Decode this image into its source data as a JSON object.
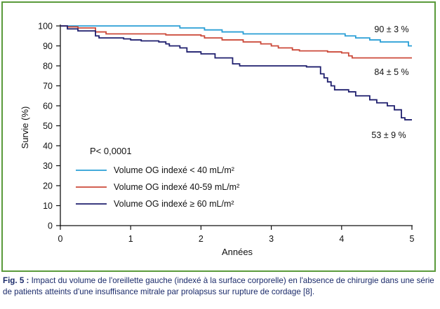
{
  "chart_data": {
    "type": "line",
    "title": "",
    "xlabel": "Années",
    "ylabel": "Survie (%)",
    "xlim": [
      0,
      5
    ],
    "ylim": [
      0,
      100
    ],
    "x_ticks": [
      "0",
      "1",
      "2",
      "3",
      "4",
      "5"
    ],
    "y_ticks": [
      "0",
      "10",
      "20",
      "30",
      "40",
      "50",
      "60",
      "70",
      "80",
      "90",
      "100"
    ],
    "grid": false,
    "legend_position": "center-left",
    "p_value": "P< 0,0001",
    "series": [
      {
        "name": "Volume OG indexé < 40 mL/m²",
        "color": "#2a9fd6",
        "end_label": "90 ± 3 %",
        "points": [
          [
            0,
            100
          ],
          [
            0.25,
            100
          ],
          [
            1.2,
            100
          ],
          [
            1.7,
            99
          ],
          [
            2.05,
            98
          ],
          [
            2.3,
            97
          ],
          [
            2.6,
            96
          ],
          [
            3.3,
            96
          ],
          [
            3.9,
            96
          ],
          [
            4.05,
            95
          ],
          [
            4.2,
            94
          ],
          [
            4.4,
            93
          ],
          [
            4.55,
            92
          ],
          [
            4.9,
            92
          ],
          [
            4.95,
            90
          ],
          [
            5,
            90
          ]
        ]
      },
      {
        "name": "Volume OG indexé 40-59 mL/m²",
        "color": "#cc4a3a",
        "end_label": "84 ± 5 %",
        "points": [
          [
            0,
            100
          ],
          [
            0.1,
            99.5
          ],
          [
            0.25,
            99
          ],
          [
            0.5,
            97
          ],
          [
            0.65,
            96
          ],
          [
            1.3,
            96
          ],
          [
            1.5,
            95.5
          ],
          [
            2.0,
            95
          ],
          [
            2.05,
            94
          ],
          [
            2.3,
            93
          ],
          [
            2.6,
            92
          ],
          [
            2.85,
            91
          ],
          [
            3.0,
            90
          ],
          [
            3.1,
            89
          ],
          [
            3.3,
            88
          ],
          [
            3.4,
            87.5
          ],
          [
            3.8,
            87
          ],
          [
            4.0,
            86.5
          ],
          [
            4.1,
            85
          ],
          [
            4.15,
            84
          ],
          [
            5,
            84
          ]
        ]
      },
      {
        "name": "Volume OG indexé ≥ 60 mL/m²",
        "color": "#1f1f6e",
        "end_label": "53 ± 9 %",
        "points": [
          [
            0,
            100
          ],
          [
            0.1,
            98.5
          ],
          [
            0.25,
            97.5
          ],
          [
            0.5,
            95
          ],
          [
            0.55,
            94
          ],
          [
            0.9,
            93.5
          ],
          [
            1.0,
            93
          ],
          [
            1.15,
            92.5
          ],
          [
            1.4,
            92
          ],
          [
            1.5,
            91
          ],
          [
            1.55,
            90
          ],
          [
            1.7,
            89
          ],
          [
            1.8,
            87
          ],
          [
            2.0,
            86
          ],
          [
            2.2,
            84
          ],
          [
            2.45,
            81
          ],
          [
            2.55,
            80
          ],
          [
            3.05,
            80
          ],
          [
            3.5,
            79.5
          ],
          [
            3.7,
            76
          ],
          [
            3.75,
            74
          ],
          [
            3.8,
            72
          ],
          [
            3.85,
            70
          ],
          [
            3.9,
            68
          ],
          [
            4.1,
            67
          ],
          [
            4.2,
            65
          ],
          [
            4.4,
            63
          ],
          [
            4.5,
            61.5
          ],
          [
            4.65,
            60
          ],
          [
            4.75,
            58
          ],
          [
            4.85,
            54
          ],
          [
            4.9,
            53
          ],
          [
            5,
            53
          ]
        ]
      }
    ]
  },
  "caption": {
    "fig_label": "Fig. 5 :",
    "text": " Impact du volume de l'oreillette gauche (indexé à la surface corporelle) en l'absence de chirurgie dans une série de patients atteints d'une insuffisance mitrale par prolapsus sur rupture de cordage [8]."
  }
}
